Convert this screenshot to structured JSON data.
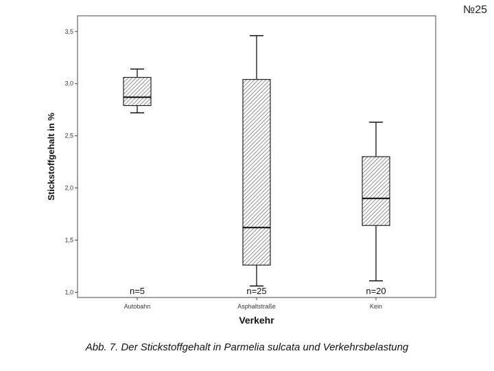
{
  "page_number": "№25",
  "caption": "Abb. 7. Der Stickstoffgehalt in Parmelia sulcata und Verkehrsbelastung",
  "chart_data": {
    "type": "boxplot",
    "xlabel": "Verkehr",
    "ylabel": "Stickstoffgehalt in %",
    "ylim": [
      0.95,
      3.65
    ],
    "yticks": [
      1.0,
      1.5,
      2.0,
      2.5,
      3.0,
      3.5
    ],
    "ytick_labels": [
      "1,0",
      "1,5",
      "2,0",
      "2,5",
      "3,0",
      "3,5"
    ],
    "grid": false,
    "categories": [
      "Autobahn",
      "Asphaltstraße",
      "Kein"
    ],
    "n_labels": [
      "n=5",
      "n=25",
      "n=20"
    ],
    "boxes": [
      {
        "min": 2.72,
        "q1": 2.79,
        "median": 2.87,
        "q3": 3.06,
        "max": 3.14
      },
      {
        "min": 1.06,
        "q1": 1.26,
        "median": 1.62,
        "q3": 3.04,
        "max": 3.46
      },
      {
        "min": 1.11,
        "q1": 1.64,
        "median": 1.9,
        "q3": 2.3,
        "max": 2.63
      }
    ]
  }
}
